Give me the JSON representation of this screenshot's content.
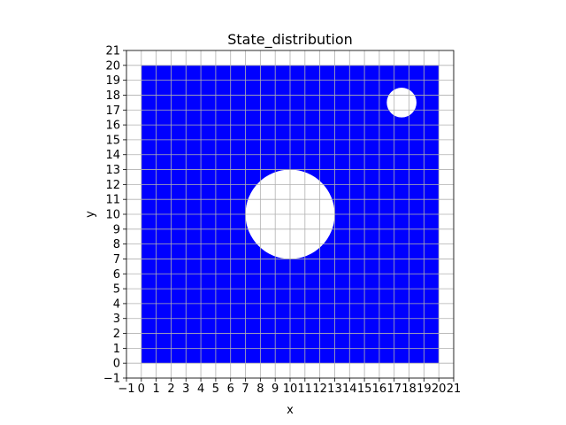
{
  "chart_data": {
    "type": "scatter",
    "title": "State_distribution",
    "xlabel": "x",
    "ylabel": "y",
    "xlim": [
      -1,
      21
    ],
    "ylim": [
      -1,
      21
    ],
    "xticks": [
      -1,
      0,
      1,
      2,
      3,
      4,
      5,
      6,
      7,
      8,
      9,
      10,
      11,
      12,
      13,
      14,
      15,
      16,
      17,
      18,
      19,
      20,
      21
    ],
    "yticks": [
      -1,
      0,
      1,
      2,
      3,
      4,
      5,
      6,
      7,
      8,
      9,
      10,
      11,
      12,
      13,
      14,
      15,
      16,
      17,
      18,
      19,
      20,
      21
    ],
    "xtick_labels": [
      "−1",
      "0",
      "1",
      "2",
      "3",
      "4",
      "5",
      "6",
      "7",
      "8",
      "9",
      "10",
      "11",
      "12",
      "13",
      "14",
      "15",
      "16",
      "17",
      "18",
      "19",
      "20",
      "21"
    ],
    "ytick_labels": [
      "−1",
      "0",
      "1",
      "2",
      "3",
      "4",
      "5",
      "6",
      "7",
      "8",
      "9",
      "10",
      "11",
      "12",
      "13",
      "14",
      "15",
      "16",
      "17",
      "18",
      "19",
      "20",
      "21"
    ],
    "grid": true,
    "grid_color": "#b0b0b0",
    "point_color": "#0000ff",
    "occupied_region": {
      "x": [
        0,
        20
      ],
      "y": [
        0,
        20
      ]
    },
    "empty_regions": [
      {
        "shape": "circle",
        "center": [
          10,
          10
        ],
        "radius": 3
      },
      {
        "shape": "circle",
        "center": [
          17.5,
          17.5
        ],
        "radius": 1
      }
    ]
  }
}
